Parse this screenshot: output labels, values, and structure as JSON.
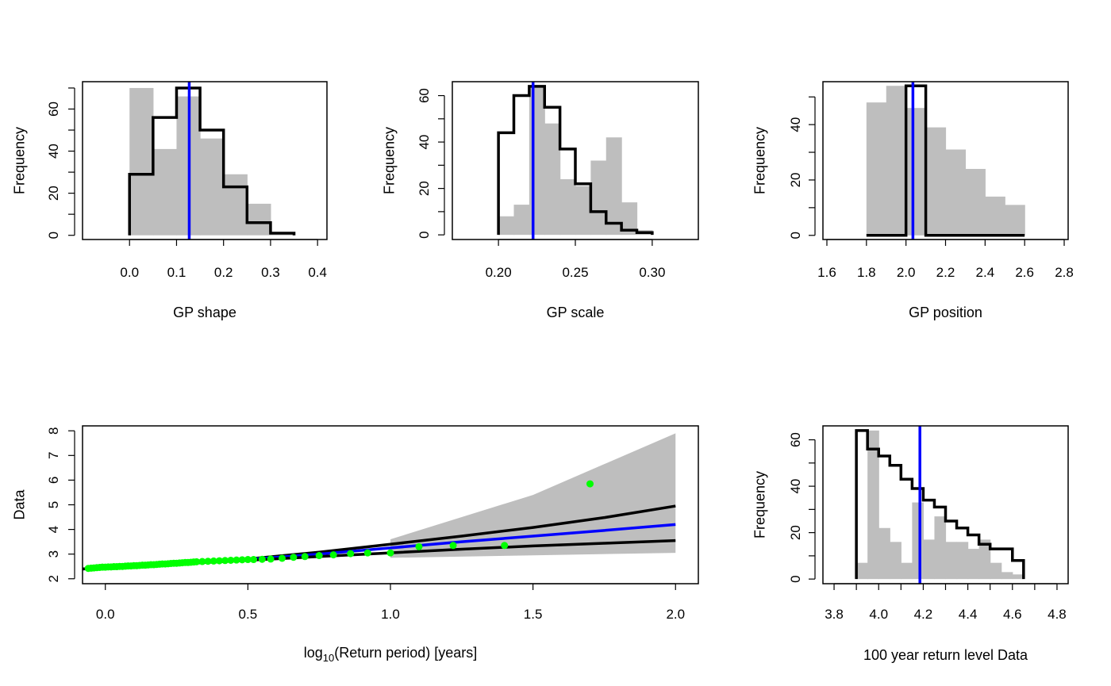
{
  "chart_data": [
    {
      "id": "gp_shape",
      "type": "histogram",
      "xlabel": "GP shape",
      "ylabel": "Frequency",
      "xlim": [
        -0.1,
        0.42
      ],
      "ylim": [
        -2,
        73
      ],
      "xticks": [
        0.0,
        0.1,
        0.2,
        0.3,
        0.4
      ],
      "xtick_labels": [
        "0.0",
        "0.1",
        "0.2",
        "0.3",
        "0.4"
      ],
      "yticks": [
        0,
        20,
        40,
        60
      ],
      "yminor": [
        10,
        30,
        50,
        70
      ],
      "ytick_labels": [
        "0",
        "20",
        "40",
        "60"
      ],
      "grey_hist": {
        "breaks": [
          0.0,
          0.05,
          0.1,
          0.15,
          0.2,
          0.25,
          0.3,
          0.35
        ],
        "counts": [
          70,
          41,
          66,
          46,
          29,
          15,
          1
        ]
      },
      "black_step": {
        "breaks": [
          0.0,
          0.05,
          0.1,
          0.15,
          0.2,
          0.25,
          0.3,
          0.35
        ],
        "counts": [
          29,
          56,
          70,
          50,
          23,
          6,
          1
        ]
      },
      "vline": 0.127
    },
    {
      "id": "gp_scale",
      "type": "histogram",
      "xlabel": "GP scale",
      "ylabel": "Frequency",
      "xlim": [
        0.17,
        0.33
      ],
      "ylim": [
        -2,
        66
      ],
      "xticks": [
        0.2,
        0.25,
        0.3
      ],
      "xtick_labels": [
        "0.20",
        "0.25",
        "0.30"
      ],
      "yticks": [
        0,
        20,
        40,
        60
      ],
      "yminor": [
        10,
        30,
        50
      ],
      "ytick_labels": [
        "0",
        "20",
        "40",
        "60"
      ],
      "grey_hist": {
        "breaks": [
          0.2,
          0.21,
          0.22,
          0.23,
          0.24,
          0.25,
          0.26,
          0.27,
          0.28,
          0.29,
          0.3
        ],
        "counts": [
          8,
          13,
          64,
          48,
          24,
          21,
          32,
          42,
          14,
          2
        ]
      },
      "black_step": {
        "breaks": [
          0.2,
          0.21,
          0.22,
          0.23,
          0.24,
          0.25,
          0.26,
          0.27,
          0.28,
          0.29,
          0.3
        ],
        "counts": [
          44,
          60,
          64,
          55,
          37,
          22,
          10,
          5,
          2,
          1
        ]
      },
      "vline": 0.2225
    },
    {
      "id": "gp_position",
      "type": "histogram",
      "xlabel": "GP position",
      "ylabel": "Frequency",
      "xlim": [
        1.58,
        2.82
      ],
      "ylim": [
        -1.5,
        55.5
      ],
      "xticks": [
        1.6,
        1.8,
        2.0,
        2.2,
        2.4,
        2.6,
        2.8
      ],
      "xtick_labels": [
        "1.6",
        "1.8",
        "2.0",
        "2.2",
        "2.4",
        "2.6",
        "2.8"
      ],
      "yticks": [
        0,
        20,
        40
      ],
      "yminor": [
        10,
        30,
        50
      ],
      "ytick_labels": [
        "0",
        "20",
        "40"
      ],
      "grey_hist": {
        "breaks": [
          1.8,
          1.9,
          2.0,
          2.1,
          2.2,
          2.3,
          2.4,
          2.5,
          2.6
        ],
        "counts": [
          48,
          54,
          46,
          39,
          31,
          24,
          14,
          11
        ]
      },
      "black_step": {
        "breaks": [
          1.8,
          2.0,
          2.1,
          2.6
        ],
        "counts": [
          0,
          54,
          0
        ]
      },
      "vline": 2.035
    },
    {
      "id": "return_level_plot",
      "type": "line",
      "xlabel_main": "log",
      "xlabel_sub": "10",
      "xlabel_rest": "(Return period) [years]",
      "ylabel": "Data",
      "xlim": [
        -0.08,
        2.08
      ],
      "ylim": [
        1.8,
        8.2
      ],
      "xticks": [
        0.0,
        0.5,
        1.0,
        1.5,
        2.0
      ],
      "xtick_labels": [
        "0.0",
        "0.5",
        "1.0",
        "1.5",
        "2.0"
      ],
      "yticks": [
        2,
        3,
        4,
        5,
        6,
        7,
        8
      ],
      "ytick_labels": [
        "2",
        "3",
        "4",
        "5",
        "6",
        "7",
        "8"
      ],
      "band": {
        "x": [
          1.0,
          1.5,
          2.0,
          2.0,
          1.5,
          1.0
        ],
        "y": [
          3.6,
          5.4,
          7.9,
          3.05,
          2.95,
          2.85
        ]
      },
      "series": [
        {
          "role": "upper_ci",
          "color": "#000000",
          "x": [
            -0.08,
            0.0,
            0.25,
            0.5,
            0.75,
            1.0,
            1.25,
            1.5,
            1.75,
            2.0
          ],
          "y": [
            2.4,
            2.43,
            2.6,
            2.8,
            3.08,
            3.4,
            3.73,
            4.08,
            4.48,
            4.95
          ]
        },
        {
          "role": "estimate",
          "color": "#0000ff",
          "x": [
            -0.08,
            0.0,
            0.25,
            0.5,
            0.75,
            1.0,
            1.25,
            1.5,
            1.75,
            2.0
          ],
          "y": [
            2.4,
            2.43,
            2.6,
            2.78,
            3.0,
            3.25,
            3.5,
            3.73,
            3.96,
            4.2
          ]
        },
        {
          "role": "lower_ci",
          "color": "#000000",
          "x": [
            -0.08,
            0.0,
            0.25,
            0.5,
            0.75,
            1.0,
            1.25,
            1.5,
            1.75,
            2.0
          ],
          "y": [
            2.4,
            2.43,
            2.6,
            2.75,
            2.9,
            3.05,
            3.2,
            3.33,
            3.44,
            3.55
          ]
        }
      ],
      "points": {
        "color": "#00ff00",
        "x": [
          -0.06,
          -0.05,
          -0.04,
          -0.03,
          -0.02,
          -0.01,
          0.0,
          0.01,
          0.02,
          0.03,
          0.04,
          0.05,
          0.06,
          0.07,
          0.08,
          0.09,
          0.1,
          0.11,
          0.12,
          0.13,
          0.14,
          0.15,
          0.16,
          0.17,
          0.18,
          0.19,
          0.2,
          0.21,
          0.22,
          0.23,
          0.24,
          0.25,
          0.26,
          0.27,
          0.28,
          0.29,
          0.3,
          0.31,
          0.32,
          0.34,
          0.36,
          0.38,
          0.4,
          0.42,
          0.44,
          0.46,
          0.48,
          0.5,
          0.52,
          0.55,
          0.58,
          0.62,
          0.66,
          0.7,
          0.75,
          0.8,
          0.86,
          0.92,
          1.0,
          1.1,
          1.22,
          1.4,
          1.7
        ],
        "y": [
          2.42,
          2.43,
          2.44,
          2.45,
          2.46,
          2.47,
          2.47,
          2.48,
          2.48,
          2.49,
          2.49,
          2.5,
          2.5,
          2.51,
          2.52,
          2.52,
          2.53,
          2.53,
          2.54,
          2.55,
          2.55,
          2.56,
          2.57,
          2.57,
          2.58,
          2.59,
          2.6,
          2.6,
          2.61,
          2.62,
          2.63,
          2.63,
          2.64,
          2.65,
          2.66,
          2.66,
          2.67,
          2.68,
          2.69,
          2.7,
          2.71,
          2.72,
          2.73,
          2.74,
          2.75,
          2.76,
          2.77,
          2.78,
          2.78,
          2.79,
          2.8,
          2.83,
          2.87,
          2.9,
          2.94,
          2.97,
          3.02,
          3.05,
          3.05,
          3.3,
          3.35,
          3.35,
          5.85
        ]
      }
    },
    {
      "id": "return_level_100",
      "type": "histogram",
      "xlabel": "100 year return level Data",
      "ylabel": "Frequency",
      "xlim": [
        3.75,
        4.85
      ],
      "ylim": [
        -2,
        66
      ],
      "xticks": [
        3.8,
        3.9,
        4.0,
        4.1,
        4.2,
        4.3,
        4.4,
        4.5,
        4.6,
        4.7,
        4.8
      ],
      "xtick_labels": [
        "3.8",
        "",
        "4.0",
        "",
        "4.2",
        "",
        "4.4",
        "",
        "4.6",
        "",
        "4.8"
      ],
      "yticks": [
        0,
        10,
        20,
        30,
        40,
        50,
        60
      ],
      "ytick_labels": [
        "0",
        "",
        "20",
        "",
        "40",
        "",
        "60"
      ],
      "grey_hist": {
        "breaks": [
          3.9,
          3.95,
          4.0,
          4.05,
          4.1,
          4.15,
          4.2,
          4.25,
          4.3,
          4.35,
          4.4,
          4.45,
          4.5,
          4.55,
          4.6,
          4.65
        ],
        "counts": [
          7,
          64,
          22,
          16,
          7,
          33,
          17,
          27,
          16,
          16,
          13,
          17,
          7,
          3,
          2
        ]
      },
      "black_step": {
        "breaks": [
          3.9,
          3.95,
          4.0,
          4.05,
          4.1,
          4.15,
          4.2,
          4.25,
          4.3,
          4.35,
          4.4,
          4.45,
          4.5,
          4.55,
          4.6,
          4.65
        ],
        "counts": [
          64,
          56,
          53,
          49,
          43,
          39,
          34,
          31,
          25,
          22,
          19,
          15,
          13,
          13,
          8
        ]
      },
      "vline": 4.185
    }
  ]
}
